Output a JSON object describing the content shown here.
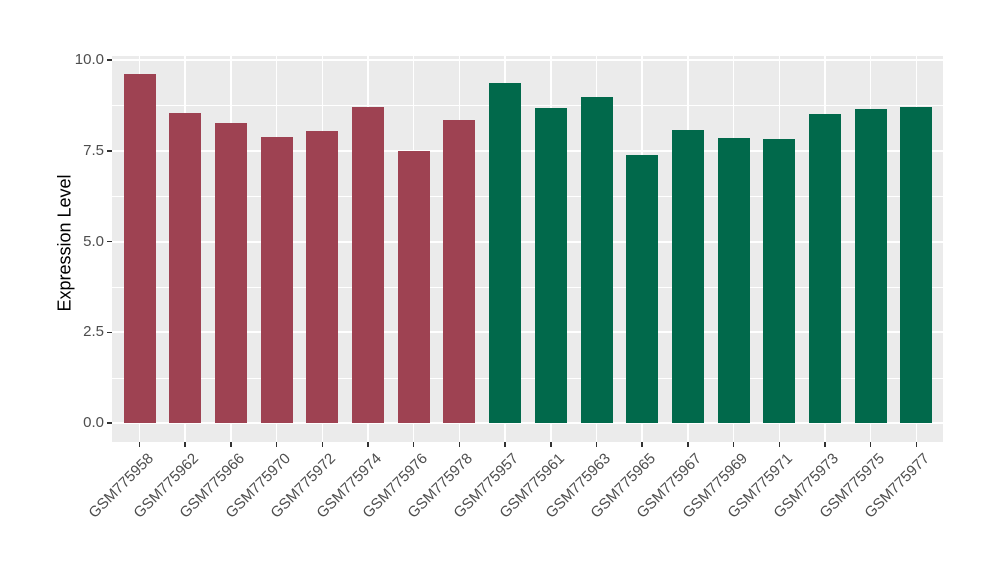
{
  "chart_data": {
    "type": "bar",
    "title": "",
    "xlabel": "",
    "ylabel": "Expression Level",
    "ylim": [
      0,
      10
    ],
    "ytick_values": [
      0,
      2.5,
      5,
      7.5,
      10
    ],
    "ytick_labels": [
      "0.0",
      "2.5",
      "5.0",
      "7.5",
      "10.0"
    ],
    "grid": "on",
    "legend_position": "none",
    "categories": [
      "GSM775958",
      "GSM775962",
      "GSM775966",
      "GSM775970",
      "GSM775972",
      "GSM775974",
      "GSM775976",
      "GSM775978",
      "GSM775957",
      "GSM775961",
      "GSM775963",
      "GSM775965",
      "GSM775967",
      "GSM775969",
      "GSM775971",
      "GSM775973",
      "GSM775975",
      "GSM775977"
    ],
    "values": [
      9.62,
      8.53,
      8.26,
      7.89,
      8.05,
      8.71,
      7.5,
      8.35,
      9.38,
      8.68,
      8.99,
      7.38,
      8.07,
      7.84,
      7.81,
      8.52,
      8.66,
      8.71
    ],
    "bar_groups": [
      "a",
      "a",
      "a",
      "a",
      "a",
      "a",
      "a",
      "a",
      "b",
      "b",
      "b",
      "b",
      "b",
      "b",
      "b",
      "b",
      "b",
      "b"
    ]
  },
  "colors": {
    "group_a": "#9E4252",
    "group_b": "#01694B",
    "panel_bg": "#EBEBEB",
    "gridline": "#FFFFFF",
    "tick_label": "#4D4D4D",
    "axis_title": "#000000",
    "tick_mark": "#333333",
    "background": "#FFFFFF"
  }
}
